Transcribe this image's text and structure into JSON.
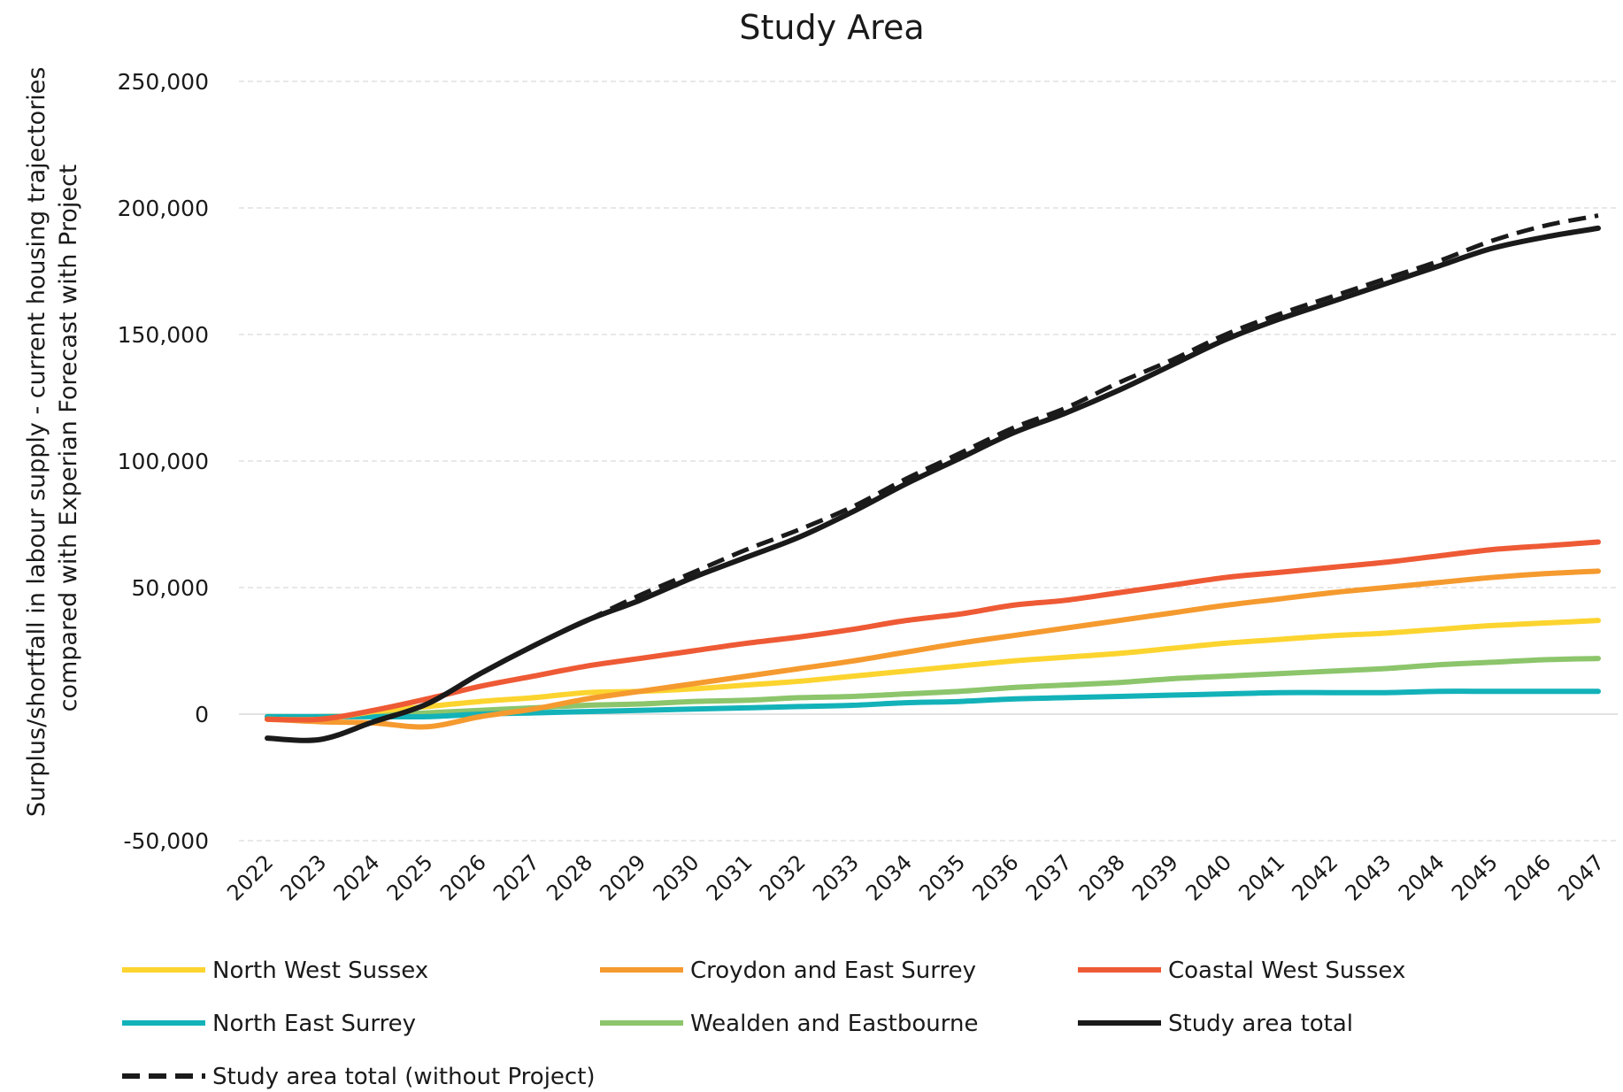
{
  "chart_data": {
    "type": "line",
    "title": "Study Area",
    "ylabel_lines": [
      "Surplus/shortfall in labour supply - current housing trajectories",
      "compared with Experian Forecast with Project"
    ],
    "xlabel": "",
    "ylim": [
      -50000,
      250000
    ],
    "yticks": [
      250000,
      200000,
      150000,
      100000,
      50000,
      0,
      -50000
    ],
    "ytick_labels": [
      "250,000",
      "200,000",
      "150,000",
      "100,000",
      "50,000",
      "0",
      "-50,000"
    ],
    "negative_tick_color": "#e8141c",
    "grid": "horizontal dashed",
    "legend_position": "bottom",
    "categories": [
      "2022",
      "2023",
      "2024",
      "2025",
      "2026",
      "2027",
      "2028",
      "2029",
      "2030",
      "2031",
      "2032",
      "2033",
      "2034",
      "2035",
      "2036",
      "2037",
      "2038",
      "2039",
      "2040",
      "2041",
      "2042",
      "2043",
      "2044",
      "2045",
      "2046",
      "2047"
    ],
    "series": [
      {
        "name": "North West Sussex",
        "color": "#fcd42f",
        "dash": "solid",
        "values": [
          -2000,
          -2000,
          1000,
          3000,
          5000,
          6500,
          8500,
          9000,
          10000,
          11500,
          13000,
          15000,
          17000,
          19000,
          21000,
          22500,
          24000,
          26000,
          28000,
          29500,
          31000,
          32000,
          33500,
          35000,
          36000,
          37000
        ]
      },
      {
        "name": "Croydon and East Surrey",
        "color": "#f59a2f",
        "dash": "solid",
        "values": [
          -2000,
          -3000,
          -3500,
          -5000,
          -1000,
          2000,
          6000,
          9000,
          12000,
          15000,
          18000,
          21000,
          24500,
          28000,
          31000,
          34000,
          37000,
          40000,
          43000,
          45500,
          48000,
          50000,
          52000,
          54000,
          55500,
          56500
        ]
      },
      {
        "name": "Coastal West Sussex",
        "color": "#ee5a35",
        "dash": "solid",
        "values": [
          -2000,
          -2000,
          1500,
          6000,
          11000,
          15000,
          19000,
          22000,
          25000,
          28000,
          30500,
          33500,
          37000,
          39500,
          43000,
          45000,
          48000,
          51000,
          54000,
          56000,
          58000,
          60000,
          62500,
          65000,
          66500,
          68000
        ]
      },
      {
        "name": "North East Surrey",
        "color": "#13b2b9",
        "dash": "solid",
        "values": [
          -1000,
          -1000,
          -1000,
          -1000,
          0,
          500,
          1000,
          1500,
          2000,
          2500,
          3000,
          3500,
          4500,
          5000,
          6000,
          6500,
          7000,
          7500,
          8000,
          8500,
          8500,
          8500,
          9000,
          9000,
          9000,
          9000
        ]
      },
      {
        "name": "Wealden and Eastbourne",
        "color": "#8cc56b",
        "dash": "solid",
        "values": [
          -1000,
          -1000,
          -500,
          500,
          1500,
          2500,
          3500,
          4000,
          5000,
          5500,
          6500,
          7000,
          8000,
          9000,
          10500,
          11500,
          12500,
          14000,
          15000,
          16000,
          17000,
          18000,
          19500,
          20500,
          21500,
          22000
        ]
      },
      {
        "name": "Study area total",
        "color": "#1a1a1a",
        "dash": "solid",
        "values": [
          -9500,
          -10000,
          -3000,
          4000,
          16000,
          27000,
          37000,
          45000,
          54000,
          62000,
          70000,
          80000,
          91000,
          101000,
          111000,
          119000,
          128000,
          138000,
          148000,
          156000,
          163000,
          170000,
          177000,
          184000,
          188500,
          192000
        ]
      },
      {
        "name": "Study area total (without Project)",
        "color": "#1a1a1a",
        "dash": "dashed",
        "values": [
          null,
          null,
          null,
          null,
          null,
          null,
          37000,
          47000,
          56000,
          65000,
          73000,
          82000,
          93000,
          103000,
          113000,
          121000,
          131000,
          140000,
          150000,
          158000,
          165000,
          172000,
          179000,
          187000,
          193000,
          197000
        ]
      }
    ]
  }
}
